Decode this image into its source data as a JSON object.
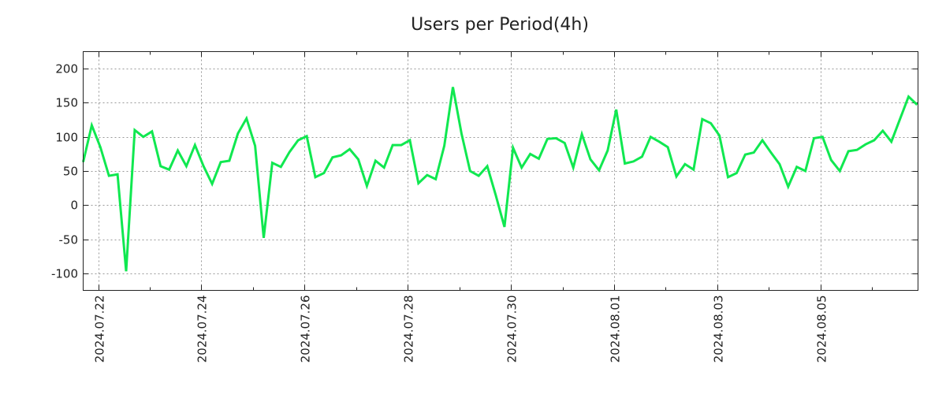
{
  "chart_data": {
    "type": "line",
    "title": "Users per Period(4h)",
    "xlabel": "",
    "ylabel": "",
    "x_start": "2024-07-21 17:00",
    "step_hours": 4,
    "ylim": [
      -125,
      225
    ],
    "xlim_hours_from_start": [
      0,
      388.4
    ],
    "grid": true,
    "yticks": [
      -100,
      -50,
      0,
      50,
      100,
      150,
      200
    ],
    "ytick_labels": [
      "-100",
      "-50",
      "0",
      "50",
      "100",
      "150",
      "200"
    ],
    "xtick_labels": [
      "2024.07.22",
      "2024.07.24",
      "2024.07.26",
      "2024.07.28",
      "2024.07.30",
      "2024.08.01",
      "2024.08.03",
      "2024.08.05"
    ],
    "xtick_hours_from_start": [
      7,
      55,
      103,
      151,
      199,
      247,
      295,
      343
    ],
    "series": [
      {
        "name": "Users",
        "color": "#10e850",
        "values": [
          63,
          117,
          85,
          43,
          45,
          -97,
          110,
          100,
          108,
          57,
          52,
          80,
          57,
          88,
          57,
          31,
          63,
          65,
          105,
          127,
          87,
          -48,
          62,
          56,
          78,
          95,
          101,
          41,
          47,
          70,
          73,
          82,
          67,
          28,
          65,
          55,
          88,
          88,
          95,
          32,
          44,
          38,
          87,
          173,
          105,
          50,
          43,
          57,
          14,
          -32,
          84,
          55,
          75,
          68,
          97,
          98,
          91,
          55,
          104,
          67,
          51,
          80,
          140,
          61,
          64,
          71,
          100,
          93,
          85,
          42,
          60,
          52,
          126,
          120,
          102,
          41,
          47,
          74,
          77,
          95,
          77,
          60,
          27,
          56,
          50,
          98,
          100,
          66,
          50,
          79,
          81,
          89,
          95,
          109,
          93,
          126,
          159,
          147
        ]
      }
    ]
  }
}
